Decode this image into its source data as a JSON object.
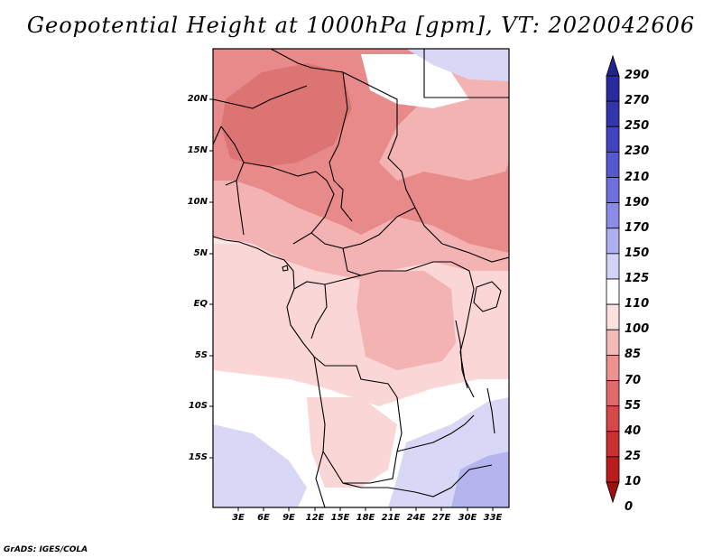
{
  "title": "Geopotential Height at 1000hPa [gpm], VT: 2020042606",
  "credit": "GrADS: IGES/COLA",
  "lat_labels": [
    "20N",
    "15N",
    "10N",
    "5N",
    "EQ",
    "5S",
    "10S",
    "15S"
  ],
  "lon_labels": [
    "3E",
    "6E",
    "9E",
    "12E",
    "15E",
    "18E",
    "21E",
    "24E",
    "27E",
    "30E",
    "33E"
  ],
  "colorbar": {
    "levels": [
      "290",
      "270",
      "250",
      "230",
      "210",
      "190",
      "170",
      "150",
      "125",
      "110",
      "100",
      "85",
      "70",
      "55",
      "40",
      "25",
      "10",
      "0"
    ],
    "colors": [
      "#23238e",
      "#2a2a9e",
      "#3434ae",
      "#4343bf",
      "#5757cf",
      "#6f6fdd",
      "#8c8ce8",
      "#aeaef1",
      "#d2d2f8",
      "#ffffff",
      "#fde0e0",
      "#f6b9b9",
      "#ec9090",
      "#e06a6a",
      "#d54848",
      "#c93030",
      "#b81c1c",
      "#a00e0e"
    ]
  },
  "colors": {
    "high_pink": "#e98a8a",
    "mid_pink": "#f3b3b3",
    "light_pink": "#fbd6d6",
    "pale_pink": "#fde8e8",
    "lavender": "#d8d8f6",
    "blue": "#b4b4ef",
    "deep_red": "#dd7474"
  }
}
